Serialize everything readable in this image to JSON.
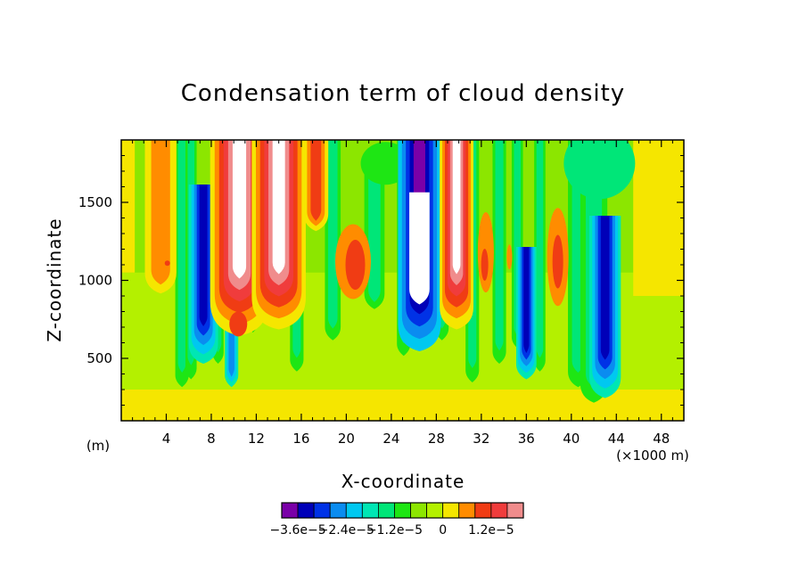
{
  "chart_data": {
    "type": "heatmap",
    "title": "Condensation term of cloud density",
    "xlabel": "X-coordinate",
    "ylabel": "Z-coordinate",
    "x_unit_left": "(m)",
    "x_unit_right": "(×1000 m)",
    "xlim": [
      0,
      50
    ],
    "ylim": [
      100,
      1900
    ],
    "x_ticks": [
      "4",
      "8",
      "12",
      "16",
      "20",
      "24",
      "28",
      "32",
      "36",
      "40",
      "44",
      "48"
    ],
    "y_ticks": [
      "500",
      "1000",
      "1500"
    ],
    "colorbar": {
      "colors": [
        "#7a00a8",
        "#0000b8",
        "#0032e6",
        "#0a8cf0",
        "#00c8f0",
        "#00e6b4",
        "#00e678",
        "#1ee614",
        "#8ce600",
        "#b4f000",
        "#f5e600",
        "#ff8c00",
        "#f03c14",
        "#f03c3c",
        "#f08c8c"
      ],
      "labels": [
        "−3.6e−5",
        "−2.4e−5",
        "−1.2e−5",
        "0",
        "1.2e−5"
      ],
      "level_step": 3e-06,
      "min_level": -3.6e-05,
      "max_level": 1.2e-05
    },
    "plumes": [
      {
        "x": 10.5,
        "z_top": 1900,
        "z_base": 700,
        "level": "strong-positive"
      },
      {
        "x": 14.0,
        "z_top": 1900,
        "z_base": 750,
        "level": "strong-positive"
      },
      {
        "x": 29.8,
        "z_top": 1900,
        "z_base": 750,
        "level": "strong-positive"
      },
      {
        "x": 26.5,
        "z_top": 1900,
        "z_base": 600,
        "level": "strong-negative"
      },
      {
        "x": 7.3,
        "z_top": 1500,
        "z_base": 500,
        "level": "negative"
      },
      {
        "x": 43.0,
        "z_top": 1300,
        "z_base": 300,
        "level": "negative"
      },
      {
        "x": 36.0,
        "z_top": 1100,
        "z_base": 400,
        "level": "negative"
      },
      {
        "x": 3.5,
        "z_top": 1900,
        "z_base": 950,
        "level": "positive"
      },
      {
        "x": 17.3,
        "z_top": 1900,
        "z_base": 1350,
        "level": "positive"
      },
      {
        "x": 20.5,
        "z_top": 1300,
        "z_base": 900,
        "level": "positive"
      },
      {
        "x": 38.8,
        "z_top": 1450,
        "z_base": 850,
        "level": "positive"
      }
    ]
  }
}
